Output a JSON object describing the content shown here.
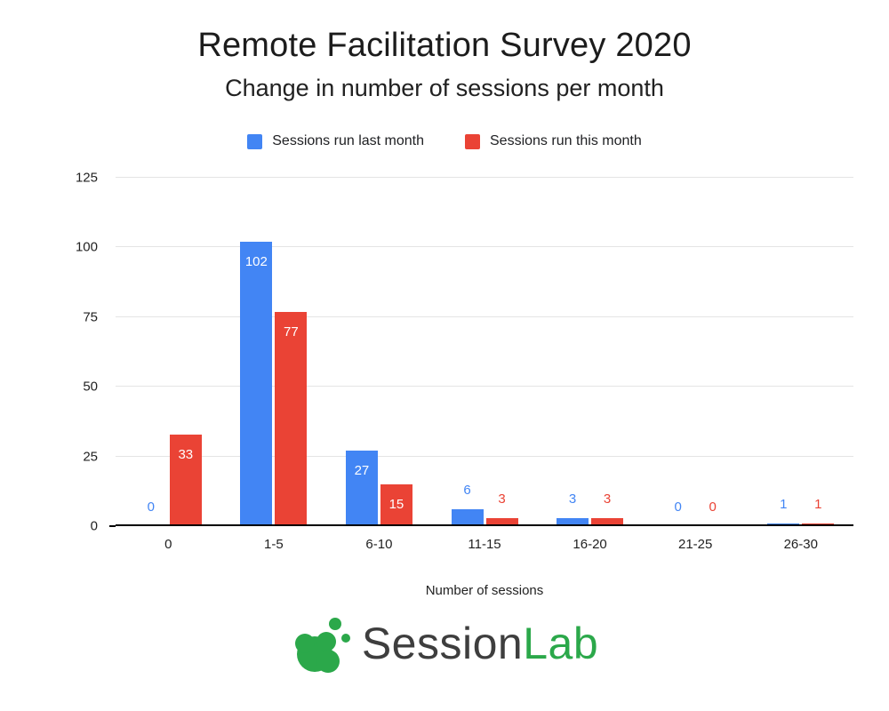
{
  "header": {
    "title": "Remote Facilitation Survey 2020",
    "subtitle": "Change in number of sessions per month"
  },
  "chart_data": {
    "type": "bar",
    "categories": [
      "0",
      "1-5",
      "6-10",
      "11-15",
      "16-20",
      "21-25",
      "26-30"
    ],
    "series": [
      {
        "name": "Sessions run last month",
        "color": "#4285F4",
        "values": [
          0,
          102,
          27,
          6,
          3,
          0,
          1
        ]
      },
      {
        "name": "Sessions run this month",
        "color": "#EA4335",
        "values": [
          33,
          77,
          15,
          3,
          3,
          0,
          1
        ]
      }
    ],
    "title": "Remote Facilitation Survey 2020",
    "subtitle": "Change in number of sessions per month",
    "xlabel": "Number of sessions",
    "ylabel": "",
    "ylim": [
      0,
      125
    ],
    "yticks": [
      0,
      25,
      50,
      75,
      100,
      125
    ],
    "grid": true,
    "legend_position": "top",
    "bar_label_inside_color": "#ffffff"
  },
  "footer": {
    "brand_primary": "Session",
    "brand_accent": "Lab",
    "brand_accent_color": "#2BA84A",
    "icon": "sessionlab-splat-icon"
  }
}
